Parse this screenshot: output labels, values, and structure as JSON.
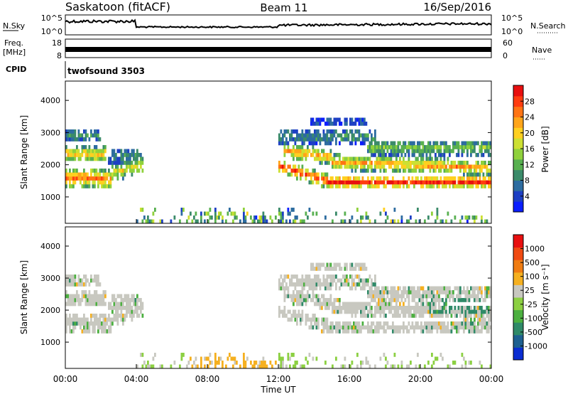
{
  "header": {
    "station": "Saskatoon (fitACF)",
    "beam": "Beam 11",
    "date": "16/Sep/2016"
  },
  "strips": {
    "nsky_label": "N.Sky",
    "nsky_ticks": [
      "10^5",
      "10^0"
    ],
    "nsearch_label": "N.Search",
    "nsearch_ticks": [
      "10^5",
      "10^0"
    ],
    "freq_label_line1": "Freq.",
    "freq_label_line2": "[MHz]",
    "freq_ticks": [
      "18",
      "8"
    ],
    "nave_label": "Nave",
    "nave_ticks": [
      "60",
      "0"
    ],
    "cpid_label": "CPID",
    "cpid_value": "twofsound 3503"
  },
  "chart_data": [
    {
      "type": "heatmap",
      "name": "power-panel",
      "ylabel": "Slant Range [km]",
      "yticks": [
        "4000",
        "3000",
        "2000",
        "1000"
      ],
      "ylim": [
        180,
        4600
      ],
      "xlim_hours": [
        0,
        24
      ],
      "colorbar": {
        "label": "Power [dB]",
        "ticks": [
          "28",
          "24",
          "20",
          "16",
          "12",
          "8",
          "4"
        ],
        "range": [
          0,
          32
        ],
        "colors": [
          "#0a1eff",
          "#1d3fc4",
          "#2d6ca0",
          "#3b8b6a",
          "#58b050",
          "#8fd13c",
          "#cde033",
          "#ffd020",
          "#ffa51a",
          "#ff7414",
          "#ff3c10",
          "#e80f0f"
        ]
      }
    },
    {
      "type": "heatmap",
      "name": "velocity-panel",
      "ylabel": "Slant Range [km]",
      "yticks": [
        "4000",
        "3000",
        "2000",
        "1000"
      ],
      "ylim": [
        180,
        4600
      ],
      "xlim_hours": [
        0,
        24
      ],
      "xticks": [
        "00:00",
        "04:00",
        "08:00",
        "12:00",
        "16:00",
        "20:00",
        "00:00"
      ],
      "xlabel": "Time UT",
      "colorbar": {
        "label": "Velocity [m s⁻¹]",
        "ticks": [
          "1000",
          "500",
          "100",
          "25",
          "-25",
          "-100",
          "-500",
          "-1000"
        ],
        "colors": [
          "#0a2dd2",
          "#1d6090",
          "#2f8a68",
          "#4cb040",
          "#8cd042",
          "#c8c8c0",
          "#f5b020",
          "#f07c12",
          "#f04a12",
          "#e81010"
        ]
      }
    }
  ]
}
